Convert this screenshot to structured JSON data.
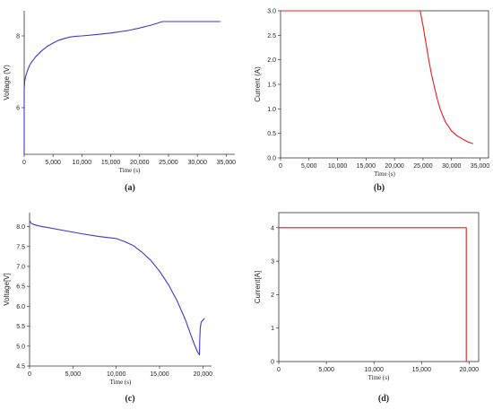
{
  "chart_data": [
    {
      "type": "line",
      "caption": "(a)",
      "xlabel": "Time (s)",
      "ylabel": "Voltage (V)",
      "xlim": [
        0,
        36500
      ],
      "ylim": [
        4.7,
        8.7
      ],
      "x_ticks": [
        0,
        5000,
        10000,
        15000,
        20000,
        25000,
        30000,
        35000
      ],
      "x_tick_labels": [
        "0",
        "5,000",
        "10,000",
        "15,000",
        "20,000",
        "25,000",
        "30,000",
        "35,000"
      ],
      "y_ticks": [
        6,
        8
      ],
      "y_tick_labels": [
        "6",
        "8"
      ],
      "color": "#3a3acc",
      "series": [
        {
          "x": [
            0,
            0,
            0,
            100,
            300,
            600,
            1000,
            1500,
            2000,
            3000,
            4000,
            5000,
            6000,
            7000,
            8000,
            9000,
            10000,
            12000,
            15000,
            18000,
            20000,
            22000,
            24000,
            24500,
            34000
          ],
          "y": [
            4.7,
            5.7,
            6.5,
            6.75,
            6.9,
            7.05,
            7.2,
            7.32,
            7.42,
            7.58,
            7.71,
            7.8,
            7.88,
            7.93,
            7.97,
            7.99,
            8.0,
            8.03,
            8.08,
            8.15,
            8.22,
            8.3,
            8.4,
            8.4,
            8.4
          ]
        }
      ]
    },
    {
      "type": "line",
      "caption": "(b)",
      "xlabel": "Time (s)",
      "ylabel": "Current (A)",
      "xlim": [
        0,
        36500
      ],
      "ylim": [
        0,
        3.0
      ],
      "x_ticks": [
        0,
        5000,
        10000,
        15000,
        20000,
        25000,
        30000,
        35000
      ],
      "x_tick_labels": [
        "0",
        "5,000",
        "10,000",
        "15,000",
        "20,000",
        "25,000",
        "30,000",
        "35,000"
      ],
      "y_ticks": [
        0,
        0.5,
        1.0,
        1.5,
        2.0,
        2.5,
        3.0
      ],
      "y_tick_labels": [
        "0.0",
        "0.5",
        "1.0",
        "1.5",
        "2.0",
        "2.5",
        "3.0"
      ],
      "color": "#e02020",
      "series": [
        {
          "x": [
            0,
            24500,
            25000,
            25500,
            26000,
            26500,
            27000,
            27500,
            28000,
            28500,
            29000,
            30000,
            31000,
            32000,
            33000,
            33800
          ],
          "y": [
            3.0,
            3.0,
            2.7,
            2.35,
            2.0,
            1.7,
            1.45,
            1.2,
            1.0,
            0.85,
            0.72,
            0.55,
            0.45,
            0.38,
            0.32,
            0.29
          ]
        }
      ]
    },
    {
      "type": "line",
      "caption": "(c)",
      "xlabel": "Time (s)",
      "ylabel": "Voltage[V]",
      "xlim": [
        0,
        21000
      ],
      "ylim": [
        4.5,
        8.35
      ],
      "x_ticks": [
        0,
        5000,
        10000,
        15000,
        20000
      ],
      "x_tick_labels": [
        "0",
        "5,000",
        "10,000",
        "15,000",
        "20,000"
      ],
      "y_ticks": [
        4.5,
        5.0,
        5.5,
        6.0,
        6.5,
        7.0,
        7.5,
        8.0
      ],
      "y_tick_labels": [
        "4.5",
        "5.0",
        "5.5",
        "6.0",
        "6.5",
        "7.0",
        "7.5",
        "8.0"
      ],
      "color": "#3a3acc",
      "series": [
        {
          "x": [
            0,
            200,
            500,
            1000,
            2000,
            4000,
            6000,
            8000,
            10000,
            11000,
            12000,
            13000,
            14000,
            15000,
            16000,
            17000,
            18000,
            18500,
            19000,
            19400,
            19600,
            19650,
            19700,
            19800,
            20000,
            20200
          ],
          "y": [
            8.15,
            8.08,
            8.05,
            8.02,
            7.98,
            7.9,
            7.82,
            7.75,
            7.7,
            7.62,
            7.52,
            7.35,
            7.15,
            6.88,
            6.55,
            6.15,
            5.65,
            5.35,
            5.05,
            4.85,
            4.78,
            5.2,
            5.45,
            5.6,
            5.65,
            5.7
          ]
        }
      ]
    },
    {
      "type": "line",
      "caption": "(d)",
      "xlabel": "Time (s)",
      "ylabel": "Current[A]",
      "xlim": [
        0,
        21000
      ],
      "ylim": [
        0,
        4.45
      ],
      "x_ticks": [
        0,
        5000,
        10000,
        15000,
        20000
      ],
      "x_tick_labels": [
        "0",
        "5,000",
        "10,000",
        "15,000",
        "20,000"
      ],
      "y_ticks": [
        0,
        1,
        2,
        3,
        4
      ],
      "y_tick_labels": [
        "0",
        "1",
        "2",
        "3",
        "4"
      ],
      "color": "#e02020",
      "series": [
        {
          "x": [
            0,
            19700,
            19700
          ],
          "y": [
            4.0,
            4.0,
            0
          ]
        }
      ]
    }
  ]
}
